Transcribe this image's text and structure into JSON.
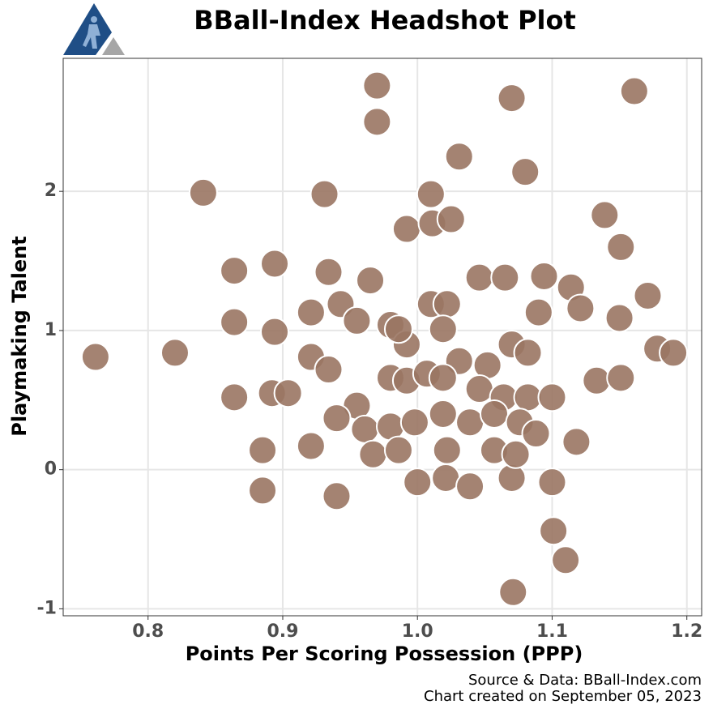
{
  "chart_data": {
    "type": "scatter",
    "title": "BBall-Index Headshot Plot",
    "x_label": "Points Per Scoring Possession (PPP)",
    "y_label": "Playmaking Talent",
    "source": "Source & Data: BBall-Index.com",
    "created": "Chart created on September 05, 2023",
    "xlim": [
      0.737,
      1.211
    ],
    "ylim": [
      -1.05,
      2.956
    ],
    "xticks": [
      0.8,
      0.9,
      {
        "value": 1,
        "label": "1.0"
      },
      1.1,
      1.2
    ],
    "yticks": [
      -1,
      0,
      1,
      2
    ],
    "grid": true,
    "color": "#9a7563",
    "x": [
      0.97,
      0.97,
      1.07,
      1.161,
      1.031,
      1.08,
      0.841,
      0.931,
      1.01,
      0.992,
      1.011,
      1.025,
      1.139,
      1.151,
      0.864,
      0.894,
      0.934,
      0.965,
      1.046,
      1.065,
      1.094,
      1.114,
      1.171,
      0.921,
      0.864,
      0.894,
      0.82,
      0.761,
      1.09,
      1.121,
      1.15,
      1.178,
      1.19,
      1.133,
      1.151,
      0.864,
      0.892,
      0.904,
      0.921,
      0.934,
      0.885,
      0.885,
      0.921,
      0.94,
      1.0,
      1.021,
      1.039,
      1.07,
      1.1,
      1.101,
      1.11,
      1.071,
      0.943,
      0.955,
      0.98,
      1.01,
      1.022,
      1.019,
      0.992,
      1.031,
      1.052,
      1.07,
      1.082,
      0.98,
      0.992,
      1.007,
      1.019,
      1.046,
      1.064,
      1.082,
      1.1,
      0.955,
      0.94,
      0.961,
      0.98,
      0.998,
      1.019,
      1.039,
      1.057,
      1.076,
      1.088,
      1.118,
      0.967,
      0.986,
      1.022,
      1.057,
      1.073,
      0.986
    ],
    "y": [
      2.76,
      2.5,
      2.67,
      2.72,
      2.25,
      2.14,
      1.99,
      1.98,
      1.98,
      1.73,
      1.77,
      1.8,
      1.83,
      1.6,
      1.43,
      1.48,
      1.42,
      1.36,
      1.38,
      1.38,
      1.39,
      1.31,
      1.25,
      1.13,
      1.06,
      0.99,
      0.84,
      0.81,
      1.13,
      1.16,
      1.09,
      0.87,
      0.84,
      0.64,
      0.66,
      0.52,
      0.55,
      0.55,
      0.81,
      0.72,
      0.14,
      -0.15,
      0.17,
      -0.19,
      -0.09,
      -0.06,
      -0.12,
      -0.06,
      -0.09,
      -0.44,
      -0.65,
      -0.88,
      1.19,
      1.07,
      1.04,
      1.19,
      1.19,
      1.01,
      0.9,
      0.78,
      0.75,
      0.9,
      0.84,
      0.66,
      0.64,
      0.69,
      0.66,
      0.58,
      0.52,
      0.52,
      0.52,
      0.46,
      0.37,
      0.29,
      0.31,
      0.34,
      0.4,
      0.34,
      0.4,
      0.34,
      0.26,
      0.2,
      0.11,
      0.14,
      0.14,
      0.14,
      0.11,
      1.01
    ]
  }
}
